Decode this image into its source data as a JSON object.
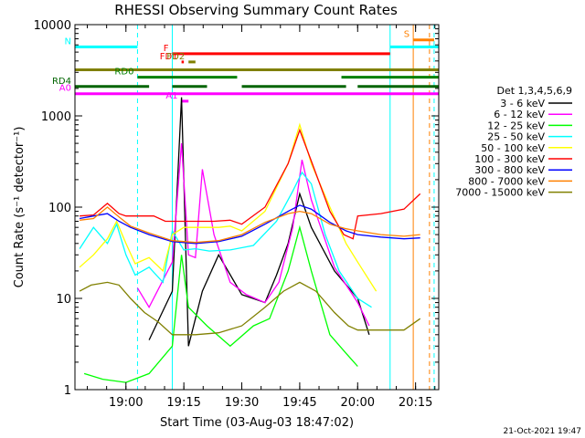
{
  "chart_data": {
    "type": "line",
    "title": "RHESSI Observing Summary Count Rates",
    "xlabel": "Start Time (03-Aug-03 18:47:02)",
    "ylabel": "Count Rate (s⁻¹ detector⁻¹)",
    "yscale": "log",
    "xlim": [
      18.78,
      20.35
    ],
    "ylim": [
      1,
      10000
    ],
    "x_unit": "hour",
    "xticks": [
      {
        "v": 19.0,
        "label": "19:00"
      },
      {
        "v": 19.25,
        "label": "19:15"
      },
      {
        "v": 19.5,
        "label": "19:30"
      },
      {
        "v": 19.75,
        "label": "19:45"
      },
      {
        "v": 20.0,
        "label": "20:00"
      },
      {
        "v": 20.25,
        "label": "20:15"
      }
    ],
    "yticks": [
      {
        "v": 1,
        "label": "1"
      },
      {
        "v": 10,
        "label": "10"
      },
      {
        "v": 100,
        "label": "100"
      },
      {
        "v": 1000,
        "label": "1000"
      },
      {
        "v": 10000,
        "label": "10000"
      }
    ],
    "legend_title": "Det 1,3,4,5,6,9",
    "legend_position": "right",
    "date_stamp": "21-Oct-2021 19:47",
    "series": [
      {
        "name": "3 - 6 keV",
        "color": "#000000",
        "points": [
          [
            19.1,
            3.5
          ],
          [
            19.2,
            12
          ],
          [
            19.24,
            1600
          ],
          [
            19.27,
            3
          ],
          [
            19.33,
            12
          ],
          [
            19.4,
            30
          ],
          [
            19.5,
            11
          ],
          [
            19.6,
            9
          ],
          [
            19.65,
            18
          ],
          [
            19.7,
            40
          ],
          [
            19.75,
            140
          ],
          [
            19.8,
            60
          ],
          [
            19.9,
            20
          ],
          [
            20.0,
            10
          ],
          [
            20.05,
            4
          ]
        ]
      },
      {
        "name": "6 - 12 keV",
        "color": "#ff00ff",
        "points": [
          [
            19.05,
            13
          ],
          [
            19.1,
            8
          ],
          [
            19.2,
            25
          ],
          [
            19.24,
            500
          ],
          [
            19.27,
            30
          ],
          [
            19.3,
            28
          ],
          [
            19.33,
            260
          ],
          [
            19.38,
            50
          ],
          [
            19.45,
            15
          ],
          [
            19.52,
            11
          ],
          [
            19.6,
            9
          ],
          [
            19.66,
            15
          ],
          [
            19.72,
            60
          ],
          [
            19.76,
            330
          ],
          [
            19.8,
            120
          ],
          [
            19.9,
            22
          ],
          [
            20.0,
            9
          ],
          [
            20.05,
            5
          ]
        ]
      },
      {
        "name": "12 - 25 keV",
        "color": "#00ff00",
        "points": [
          [
            18.82,
            1.5
          ],
          [
            18.9,
            1.3
          ],
          [
            19.0,
            1.2
          ],
          [
            19.1,
            1.5
          ],
          [
            19.2,
            3
          ],
          [
            19.24,
            30
          ],
          [
            19.27,
            8
          ],
          [
            19.35,
            5
          ],
          [
            19.45,
            3
          ],
          [
            19.55,
            5
          ],
          [
            19.62,
            6
          ],
          [
            19.7,
            20
          ],
          [
            19.75,
            60
          ],
          [
            19.8,
            20
          ],
          [
            19.88,
            4
          ],
          [
            19.95,
            2.5
          ],
          [
            20.0,
            1.8
          ]
        ]
      },
      {
        "name": "25 - 50 keV",
        "color": "#00ffff",
        "points": [
          [
            18.8,
            35
          ],
          [
            18.86,
            60
          ],
          [
            18.92,
            40
          ],
          [
            18.96,
            65
          ],
          [
            19.0,
            30
          ],
          [
            19.04,
            18
          ],
          [
            19.1,
            22
          ],
          [
            19.16,
            15
          ],
          [
            19.2,
            55
          ],
          [
            19.25,
            34
          ],
          [
            19.3,
            35
          ],
          [
            19.36,
            33
          ],
          [
            19.45,
            34
          ],
          [
            19.55,
            38
          ],
          [
            19.65,
            70
          ],
          [
            19.72,
            150
          ],
          [
            19.76,
            240
          ],
          [
            19.8,
            180
          ],
          [
            19.86,
            50
          ],
          [
            19.92,
            20
          ],
          [
            20.0,
            10
          ],
          [
            20.06,
            8
          ]
        ]
      },
      {
        "name": "50 - 100 keV",
        "color": "#ffff00",
        "points": [
          [
            18.8,
            22
          ],
          [
            18.86,
            30
          ],
          [
            18.92,
            45
          ],
          [
            18.96,
            70
          ],
          [
            19.0,
            40
          ],
          [
            19.04,
            24
          ],
          [
            19.1,
            28
          ],
          [
            19.16,
            20
          ],
          [
            19.2,
            50
          ],
          [
            19.25,
            60
          ],
          [
            19.3,
            60
          ],
          [
            19.4,
            60
          ],
          [
            19.45,
            62
          ],
          [
            19.5,
            55
          ],
          [
            19.6,
            90
          ],
          [
            19.7,
            300
          ],
          [
            19.75,
            800
          ],
          [
            19.8,
            300
          ],
          [
            19.88,
            100
          ],
          [
            19.95,
            40
          ],
          [
            20.0,
            25
          ],
          [
            20.08,
            12
          ]
        ]
      },
      {
        "name": "100 - 300 keV",
        "color": "#ff0000",
        "points": [
          [
            18.8,
            80
          ],
          [
            18.86,
            82
          ],
          [
            18.92,
            110
          ],
          [
            18.97,
            85
          ],
          [
            19.0,
            80
          ],
          [
            19.06,
            80
          ],
          [
            19.12,
            80
          ],
          [
            19.17,
            70
          ],
          [
            19.3,
            70
          ],
          [
            19.38,
            70
          ],
          [
            19.45,
            72
          ],
          [
            19.5,
            65
          ],
          [
            19.6,
            100
          ],
          [
            19.7,
            300
          ],
          [
            19.75,
            700
          ],
          [
            19.8,
            320
          ],
          [
            19.88,
            90
          ],
          [
            19.94,
            50
          ],
          [
            19.98,
            45
          ],
          [
            20.0,
            80
          ],
          [
            20.1,
            85
          ],
          [
            20.2,
            95
          ],
          [
            20.27,
            140
          ]
        ]
      },
      {
        "name": "300 - 800 keV",
        "color": "#0000ff",
        "points": [
          [
            18.8,
            75
          ],
          [
            18.86,
            80
          ],
          [
            18.92,
            85
          ],
          [
            18.97,
            70
          ],
          [
            19.02,
            60
          ],
          [
            19.1,
            50
          ],
          [
            19.2,
            42
          ],
          [
            19.3,
            40
          ],
          [
            19.4,
            42
          ],
          [
            19.5,
            48
          ],
          [
            19.6,
            65
          ],
          [
            19.7,
            90
          ],
          [
            19.75,
            105
          ],
          [
            19.8,
            95
          ],
          [
            19.88,
            68
          ],
          [
            19.95,
            55
          ],
          [
            20.0,
            50
          ],
          [
            20.1,
            47
          ],
          [
            20.2,
            45
          ],
          [
            20.27,
            46
          ]
        ]
      },
      {
        "name": "800 - 7000 keV",
        "color": "#ff8000",
        "points": [
          [
            18.8,
            72
          ],
          [
            18.86,
            75
          ],
          [
            18.92,
            100
          ],
          [
            18.97,
            78
          ],
          [
            19.02,
            62
          ],
          [
            19.1,
            52
          ],
          [
            19.2,
            43
          ],
          [
            19.3,
            41
          ],
          [
            19.4,
            43
          ],
          [
            19.5,
            50
          ],
          [
            19.6,
            68
          ],
          [
            19.7,
            85
          ],
          [
            19.75,
            90
          ],
          [
            19.8,
            85
          ],
          [
            19.88,
            65
          ],
          [
            19.95,
            58
          ],
          [
            20.0,
            55
          ],
          [
            20.1,
            50
          ],
          [
            20.2,
            48
          ],
          [
            20.27,
            50
          ]
        ]
      },
      {
        "name": "7000 - 15000 keV",
        "color": "#808000",
        "points": [
          [
            18.8,
            12
          ],
          [
            18.85,
            14
          ],
          [
            18.92,
            15
          ],
          [
            18.97,
            14
          ],
          [
            19.02,
            10
          ],
          [
            19.08,
            7
          ],
          [
            19.14,
            5.5
          ],
          [
            19.2,
            4
          ],
          [
            19.3,
            4
          ],
          [
            19.4,
            4.2
          ],
          [
            19.5,
            5
          ],
          [
            19.6,
            8
          ],
          [
            19.68,
            12
          ],
          [
            19.75,
            15
          ],
          [
            19.82,
            12
          ],
          [
            19.9,
            7
          ],
          [
            19.96,
            5
          ],
          [
            20.0,
            4.5
          ],
          [
            20.1,
            4.5
          ],
          [
            20.2,
            4.5
          ],
          [
            20.27,
            6
          ]
        ]
      }
    ],
    "flags": [
      {
        "label": "N",
        "color": "#00ffff",
        "y": 5700,
        "segments": [
          [
            18.78,
            19.05
          ],
          [
            20.14,
            20.35
          ]
        ]
      },
      {
        "label": "S",
        "color": "#ff8000",
        "y": 6800,
        "segments": [
          [
            20.24,
            20.33
          ]
        ]
      },
      {
        "label": "F",
        "color": "#ff0000",
        "y": 4800,
        "segments": [
          [
            19.2,
            20.14
          ]
        ]
      },
      {
        "label": "FD1",
        "color": "#ff0000",
        "y": 3900,
        "segments": [
          [
            19.24,
            19.25
          ]
        ]
      },
      {
        "label": "FD2",
        "color": "#808000",
        "y": 3900,
        "segments": [
          [
            19.27,
            19.3
          ]
        ]
      },
      {
        "label": "",
        "color": "#808000",
        "y": 3200,
        "segments": [
          [
            18.78,
            20.35
          ]
        ]
      },
      {
        "label": "RD0",
        "color": "#008000",
        "y": 2650,
        "segments": [
          [
            19.05,
            19.48
          ],
          [
            19.93,
            20.35
          ]
        ]
      },
      {
        "label": "RD4",
        "color": "#006400",
        "y": 2100,
        "segments": [
          [
            18.78,
            19.1
          ],
          [
            19.2,
            19.35
          ],
          [
            19.5,
            19.95
          ],
          [
            20.0,
            20.35
          ]
        ]
      },
      {
        "label": "A0",
        "color": "#ff00ff",
        "y": 1750,
        "segments": [
          [
            18.78,
            20.35
          ]
        ]
      },
      {
        "label": "A1",
        "color": "#ff00ff",
        "y": 1450,
        "segments": [
          [
            19.24,
            19.27
          ]
        ]
      }
    ],
    "vlines": [
      {
        "x": 19.2,
        "color": "#00ffff",
        "dashed": false
      },
      {
        "x": 19.05,
        "color": "#00ffff",
        "dashed": true
      },
      {
        "x": 20.14,
        "color": "#00ffff",
        "dashed": false
      },
      {
        "x": 20.33,
        "color": "#00ffff",
        "dashed": true
      },
      {
        "x": 20.24,
        "color": "#ff8000",
        "dashed": false
      },
      {
        "x": 20.31,
        "color": "#ff8000",
        "dashed": true
      }
    ]
  }
}
